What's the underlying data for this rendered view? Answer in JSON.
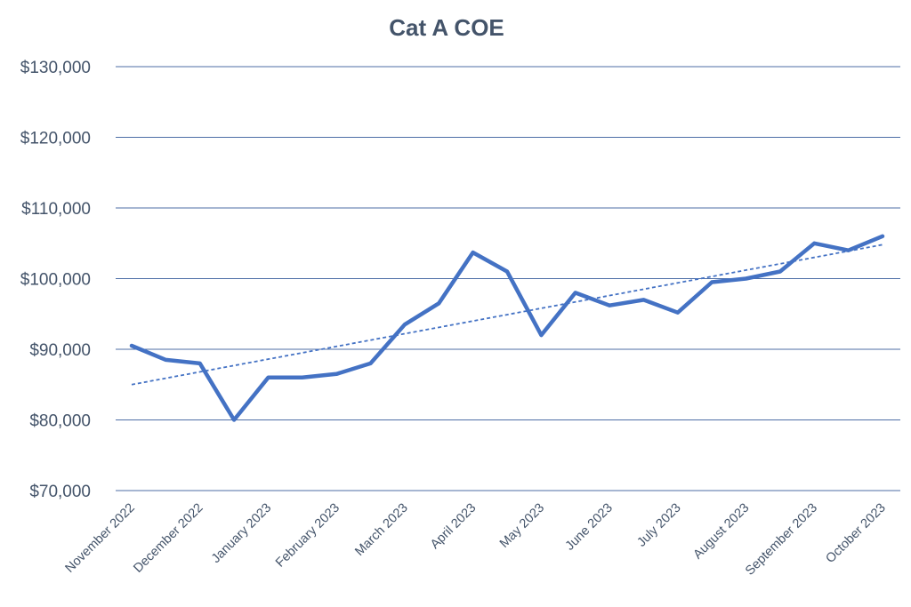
{
  "chart_data": {
    "type": "line",
    "title": "Cat A COE",
    "xlabel": "",
    "ylabel": "",
    "ylim": [
      70000,
      130000
    ],
    "y_ticks": [
      "$70,000",
      "$80,000",
      "$90,000",
      "$100,000",
      "$110,000",
      "$120,000",
      "$130,000"
    ],
    "y_tick_values": [
      70000,
      80000,
      90000,
      100000,
      110000,
      120000,
      130000
    ],
    "x_tick_labels": [
      "November 2022",
      "December 2022",
      "January 2023",
      "February 2023",
      "March 2023",
      "April 2023",
      "May 2023",
      "June 2023",
      "July 2023",
      "August 2023",
      "September 2023",
      "October 2023"
    ],
    "grid": true,
    "legend": "none",
    "series": [
      {
        "values": [
          90500,
          88500,
          88000,
          80000,
          86000,
          86000,
          86500,
          88000,
          93500,
          96500,
          103700,
          101000,
          92000,
          98000,
          96200,
          97000,
          95200,
          99500,
          100000,
          101000,
          105000,
          104000,
          106000
        ],
        "color": "#4472c4",
        "style": "solid"
      }
    ],
    "trendline": {
      "type": "linear",
      "start_value": 85000,
      "end_value": 104800,
      "color": "#4472c4",
      "style": "dashed"
    }
  }
}
